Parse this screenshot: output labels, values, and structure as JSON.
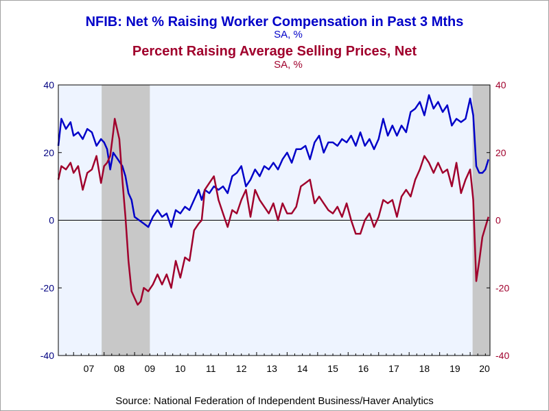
{
  "colors": {
    "blue": "#0000c8",
    "red": "#a0002c",
    "plot_bg": "#eef4ff",
    "recession": "#c8c8c8",
    "axis": "#000000",
    "tick_label": "#000080"
  },
  "source": "Source:  National Federation of Independent Business/Haver Analytics",
  "chart_data": {
    "type": "line",
    "title_1": "NFIB: Net % Raising Worker Compensation in Past 3 Mths",
    "subtitle_1": "SA, %",
    "title_2": "Percent Raising Average Selling Prices, Net",
    "subtitle_2": "SA, %",
    "x_range": [
      2006.5,
      2020.65
    ],
    "ylim": [
      -40,
      40
    ],
    "y_ticks": [
      -40,
      -20,
      0,
      20,
      40
    ],
    "x_tick_labels": [
      "07",
      "08",
      "09",
      "10",
      "11",
      "12",
      "13",
      "14",
      "15",
      "16",
      "17",
      "18",
      "19",
      "20"
    ],
    "recessions": [
      [
        2007.92,
        2009.5
      ],
      [
        2020.08,
        2020.65
      ]
    ],
    "zero_line": true,
    "series": [
      {
        "name": "NFIB: Net % Raising Worker Compensation in Past 3 Mths",
        "color_key": "blue",
        "points": [
          [
            2006.5,
            22
          ],
          [
            2006.6,
            30
          ],
          [
            2006.75,
            27
          ],
          [
            2006.9,
            29
          ],
          [
            2007.0,
            25
          ],
          [
            2007.15,
            26
          ],
          [
            2007.3,
            24
          ],
          [
            2007.45,
            27
          ],
          [
            2007.6,
            26
          ],
          [
            2007.75,
            22
          ],
          [
            2007.9,
            24
          ],
          [
            2008.0,
            23
          ],
          [
            2008.1,
            21
          ],
          [
            2008.2,
            15
          ],
          [
            2008.3,
            20
          ],
          [
            2008.45,
            18
          ],
          [
            2008.6,
            16
          ],
          [
            2008.7,
            13
          ],
          [
            2008.8,
            8
          ],
          [
            2008.9,
            6
          ],
          [
            2009.0,
            1
          ],
          [
            2009.15,
            0
          ],
          [
            2009.3,
            -1
          ],
          [
            2009.45,
            -2
          ],
          [
            2009.6,
            1
          ],
          [
            2009.75,
            3
          ],
          [
            2009.9,
            1
          ],
          [
            2010.05,
            2
          ],
          [
            2010.2,
            -2
          ],
          [
            2010.35,
            3
          ],
          [
            2010.5,
            2
          ],
          [
            2010.65,
            4
          ],
          [
            2010.8,
            3
          ],
          [
            2011.0,
            7
          ],
          [
            2011.1,
            9
          ],
          [
            2011.2,
            6
          ],
          [
            2011.3,
            9
          ],
          [
            2011.45,
            8
          ],
          [
            2011.6,
            10
          ],
          [
            2011.75,
            9
          ],
          [
            2011.9,
            10
          ],
          [
            2012.05,
            8
          ],
          [
            2012.2,
            13
          ],
          [
            2012.35,
            14
          ],
          [
            2012.5,
            16
          ],
          [
            2012.65,
            10
          ],
          [
            2012.8,
            12
          ],
          [
            2012.95,
            15
          ],
          [
            2013.1,
            13
          ],
          [
            2013.25,
            16
          ],
          [
            2013.4,
            15
          ],
          [
            2013.55,
            17
          ],
          [
            2013.7,
            15
          ],
          [
            2013.85,
            18
          ],
          [
            2014.0,
            20
          ],
          [
            2014.15,
            17
          ],
          [
            2014.3,
            21
          ],
          [
            2014.45,
            21
          ],
          [
            2014.6,
            22
          ],
          [
            2014.75,
            18
          ],
          [
            2014.9,
            23
          ],
          [
            2015.05,
            25
          ],
          [
            2015.2,
            20
          ],
          [
            2015.35,
            23
          ],
          [
            2015.5,
            23
          ],
          [
            2015.65,
            22
          ],
          [
            2015.8,
            24
          ],
          [
            2015.95,
            23
          ],
          [
            2016.1,
            25
          ],
          [
            2016.25,
            22
          ],
          [
            2016.4,
            26
          ],
          [
            2016.55,
            22
          ],
          [
            2016.7,
            24
          ],
          [
            2016.85,
            21
          ],
          [
            2017.0,
            24
          ],
          [
            2017.15,
            30
          ],
          [
            2017.3,
            25
          ],
          [
            2017.45,
            28
          ],
          [
            2017.6,
            25
          ],
          [
            2017.75,
            28
          ],
          [
            2017.9,
            26
          ],
          [
            2018.05,
            32
          ],
          [
            2018.2,
            33
          ],
          [
            2018.35,
            35
          ],
          [
            2018.5,
            31
          ],
          [
            2018.65,
            37
          ],
          [
            2018.8,
            33
          ],
          [
            2018.95,
            35
          ],
          [
            2019.1,
            32
          ],
          [
            2019.25,
            34
          ],
          [
            2019.4,
            28
          ],
          [
            2019.55,
            30
          ],
          [
            2019.7,
            29
          ],
          [
            2019.85,
            30
          ],
          [
            2020.0,
            36
          ],
          [
            2020.1,
            31
          ],
          [
            2020.2,
            16
          ],
          [
            2020.3,
            14
          ],
          [
            2020.4,
            14
          ],
          [
            2020.5,
            15
          ],
          [
            2020.6,
            18
          ]
        ]
      },
      {
        "name": "Percent Raising Average Selling Prices, Net",
        "color_key": "red",
        "points": [
          [
            2006.5,
            12
          ],
          [
            2006.6,
            16
          ],
          [
            2006.75,
            15
          ],
          [
            2006.9,
            17
          ],
          [
            2007.0,
            14
          ],
          [
            2007.15,
            16
          ],
          [
            2007.3,
            9
          ],
          [
            2007.45,
            14
          ],
          [
            2007.6,
            15
          ],
          [
            2007.75,
            19
          ],
          [
            2007.9,
            11
          ],
          [
            2008.0,
            16
          ],
          [
            2008.1,
            17
          ],
          [
            2008.2,
            19
          ],
          [
            2008.3,
            26
          ],
          [
            2008.35,
            30
          ],
          [
            2008.5,
            24
          ],
          [
            2008.6,
            12
          ],
          [
            2008.7,
            1
          ],
          [
            2008.8,
            -12
          ],
          [
            2008.9,
            -21
          ],
          [
            2009.0,
            -23
          ],
          [
            2009.1,
            -25
          ],
          [
            2009.2,
            -24
          ],
          [
            2009.3,
            -20
          ],
          [
            2009.45,
            -21
          ],
          [
            2009.6,
            -19
          ],
          [
            2009.75,
            -16
          ],
          [
            2009.9,
            -19
          ],
          [
            2010.05,
            -16
          ],
          [
            2010.2,
            -20
          ],
          [
            2010.35,
            -12
          ],
          [
            2010.5,
            -17
          ],
          [
            2010.65,
            -11
          ],
          [
            2010.8,
            -12
          ],
          [
            2010.95,
            -3
          ],
          [
            2011.1,
            -1
          ],
          [
            2011.2,
            0
          ],
          [
            2011.3,
            9
          ],
          [
            2011.45,
            11
          ],
          [
            2011.6,
            13
          ],
          [
            2011.75,
            6
          ],
          [
            2011.9,
            2
          ],
          [
            2012.05,
            -2
          ],
          [
            2012.2,
            3
          ],
          [
            2012.35,
            2
          ],
          [
            2012.5,
            6
          ],
          [
            2012.65,
            9
          ],
          [
            2012.8,
            1
          ],
          [
            2012.95,
            9
          ],
          [
            2013.1,
            6
          ],
          [
            2013.25,
            4
          ],
          [
            2013.4,
            2
          ],
          [
            2013.55,
            5
          ],
          [
            2013.7,
            0
          ],
          [
            2013.85,
            5
          ],
          [
            2014.0,
            2
          ],
          [
            2014.15,
            2
          ],
          [
            2014.3,
            4
          ],
          [
            2014.45,
            10
          ],
          [
            2014.6,
            11
          ],
          [
            2014.75,
            12
          ],
          [
            2014.9,
            5
          ],
          [
            2015.05,
            7
          ],
          [
            2015.2,
            5
          ],
          [
            2015.35,
            3
          ],
          [
            2015.5,
            2
          ],
          [
            2015.65,
            4
          ],
          [
            2015.8,
            1
          ],
          [
            2015.95,
            5
          ],
          [
            2016.1,
            0
          ],
          [
            2016.25,
            -4
          ],
          [
            2016.4,
            -4
          ],
          [
            2016.55,
            0
          ],
          [
            2016.7,
            2
          ],
          [
            2016.85,
            -2
          ],
          [
            2017.0,
            1
          ],
          [
            2017.15,
            6
          ],
          [
            2017.3,
            5
          ],
          [
            2017.45,
            6
          ],
          [
            2017.6,
            1
          ],
          [
            2017.75,
            7
          ],
          [
            2017.9,
            9
          ],
          [
            2018.05,
            7
          ],
          [
            2018.2,
            12
          ],
          [
            2018.35,
            15
          ],
          [
            2018.5,
            19
          ],
          [
            2018.65,
            17
          ],
          [
            2018.8,
            14
          ],
          [
            2018.95,
            17
          ],
          [
            2019.1,
            14
          ],
          [
            2019.25,
            15
          ],
          [
            2019.4,
            10
          ],
          [
            2019.55,
            17
          ],
          [
            2019.7,
            8
          ],
          [
            2019.85,
            12
          ],
          [
            2020.0,
            15
          ],
          [
            2020.1,
            6
          ],
          [
            2020.2,
            -18
          ],
          [
            2020.3,
            -12
          ],
          [
            2020.4,
            -5
          ],
          [
            2020.5,
            -2
          ],
          [
            2020.6,
            1
          ]
        ]
      }
    ]
  }
}
